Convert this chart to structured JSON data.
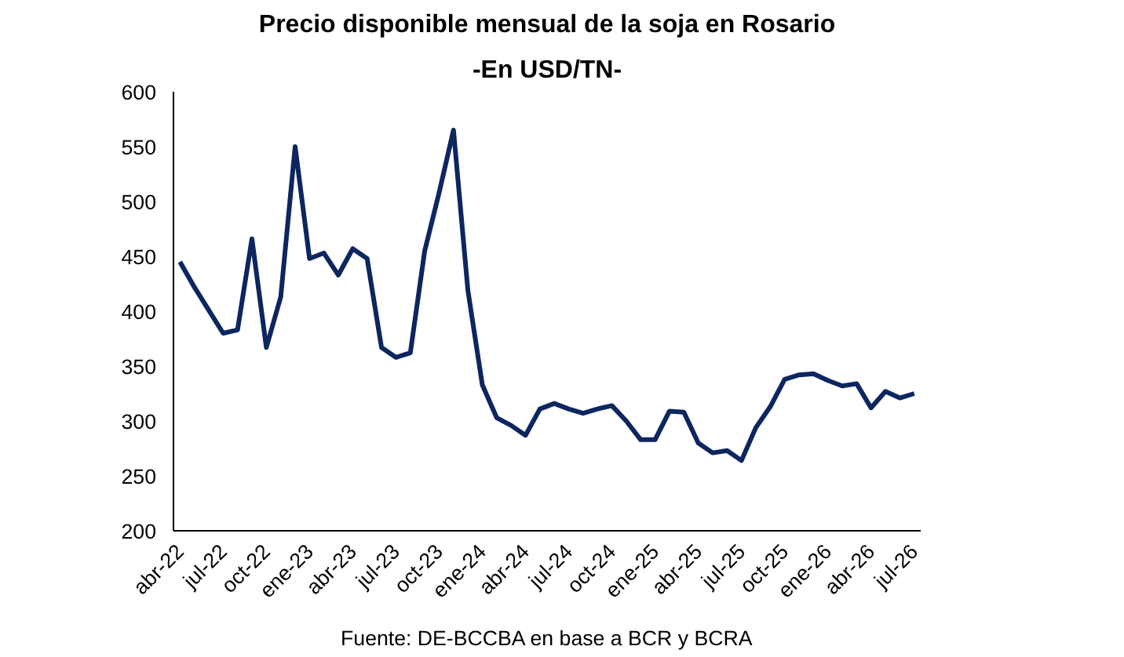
{
  "chart_data": {
    "type": "line",
    "title": "Precio disponible mensual de la soja en Rosario",
    "subtitle": "-En USD/TN-",
    "categories": [
      "abr-22",
      null,
      null,
      "jul-22",
      null,
      null,
      "oct-22",
      null,
      null,
      "ene-23",
      null,
      null,
      "abr-23",
      null,
      null,
      "jul-23",
      null,
      null,
      "oct-23",
      null,
      null,
      "ene-24",
      null,
      null,
      "abr-24",
      null,
      null,
      "jul-24",
      null,
      null,
      "oct-24",
      null,
      null,
      "ene-25",
      null,
      null,
      "abr-25",
      null,
      null,
      "jul-25",
      null,
      null,
      "oct-25",
      null,
      null,
      "ene-26",
      null,
      null,
      "abr-26",
      null,
      null,
      "jul-26"
    ],
    "series": [
      {
        "color": "#0d2660",
        "values": [
          445,
          422,
          401,
          380,
          383,
          466,
          367,
          413,
          550,
          448,
          453,
          433,
          457,
          448,
          367,
          358,
          362,
          455,
          508,
          565,
          419,
          333,
          303,
          296,
          287,
          311,
          316,
          311,
          307,
          311,
          314,
          300,
          283,
          283,
          309,
          308,
          280,
          271,
          273,
          264,
          294,
          313,
          338,
          342,
          343,
          337,
          332,
          334,
          312,
          327,
          321,
          325
        ]
      }
    ],
    "ylim": [
      200,
      600
    ],
    "yticks": [
      200,
      250,
      300,
      350,
      400,
      450,
      500,
      550,
      600
    ],
    "grid": false,
    "marker": "none",
    "line_style": "solid",
    "annotations": [
      "Fuente: DE-BCCBA en base a BCR y BCRA"
    ]
  }
}
